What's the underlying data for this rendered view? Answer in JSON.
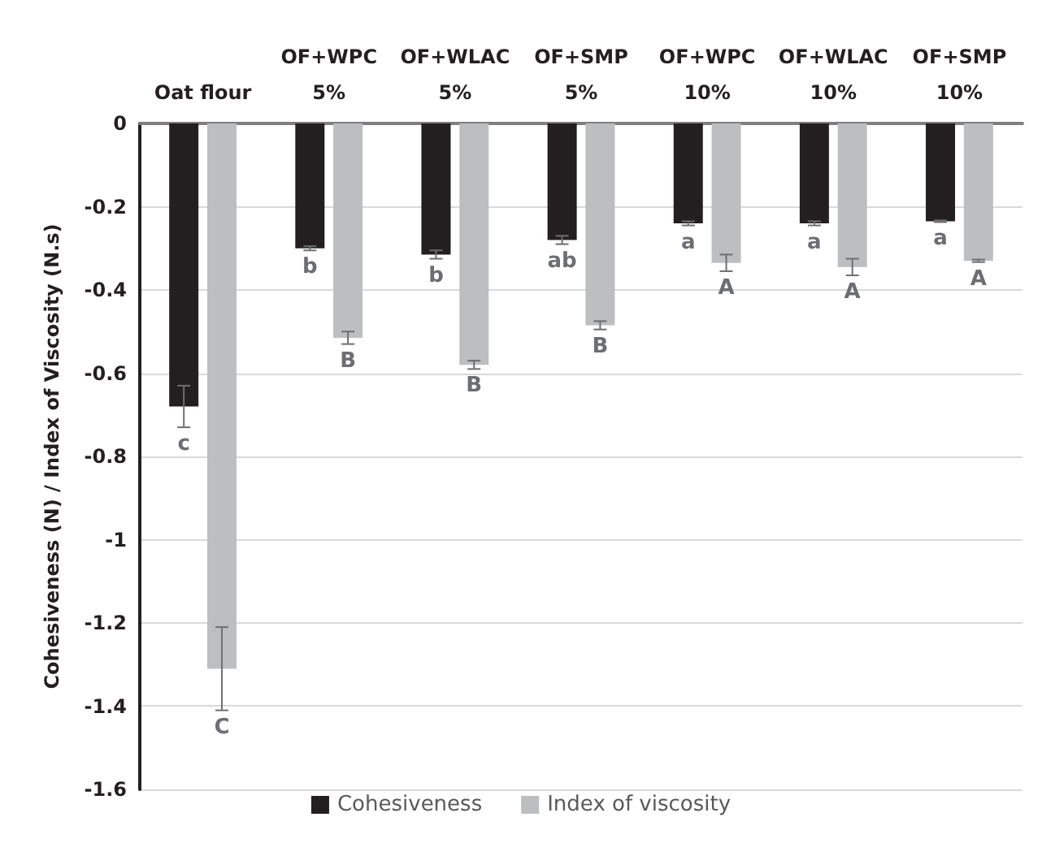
{
  "chart_data": {
    "type": "bar",
    "ylabel": "Cohesiveness (N) / Index of Viscosity (N.s)",
    "categories": [
      "Oat flour",
      "OF+WPC\n5%",
      "OF+WLAC\n5%",
      "OF+SMP\n5%",
      "OF+WPC\n10%",
      "OF+WLAC\n10%",
      "OF+SMP\n10%"
    ],
    "series": [
      {
        "name": "Cohesiveness",
        "color": "#231f20",
        "values": [
          -0.68,
          -0.3,
          -0.315,
          -0.28,
          -0.24,
          -0.24,
          -0.235
        ],
        "errors": [
          0.05,
          0.005,
          0.01,
          0.01,
          0.005,
          0.005,
          0.002
        ],
        "value_labels": [
          "c",
          "b",
          "b",
          "ab",
          "a",
          "a",
          "a"
        ]
      },
      {
        "name": "Index of viscosity",
        "color": "#bcbec0",
        "values": [
          -1.31,
          -0.515,
          -0.58,
          -0.485,
          -0.335,
          -0.345,
          -0.33
        ],
        "errors": [
          0.1,
          0.015,
          0.01,
          0.01,
          0.02,
          0.02,
          0.003
        ],
        "value_labels": [
          "C",
          "B",
          "B",
          "B",
          "A",
          "A",
          "A"
        ]
      }
    ],
    "ylim": [
      -1.6,
      0
    ],
    "yticks": [
      -1.6,
      -1.4,
      -1.2,
      -1,
      -0.8,
      -0.6,
      -0.4,
      -0.2,
      0
    ],
    "grid": "y",
    "legend": "bottom"
  }
}
